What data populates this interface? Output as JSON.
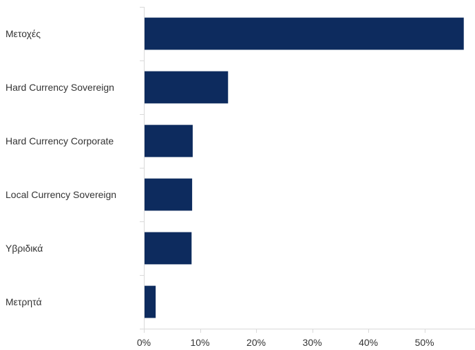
{
  "chart_data": {
    "type": "bar",
    "orientation": "horizontal",
    "categories": [
      "Μετοχές",
      "Hard Currency Sovereign",
      "Hard Currency Corporate",
      "Local Currency Sovereign",
      "Υβριδικά",
      "Μετρητά"
    ],
    "values": [
      57,
      15,
      8.7,
      8.6,
      8.5,
      2.1
    ],
    "value_unit": "%",
    "xlim": [
      0,
      59
    ],
    "xticks": [
      0,
      10,
      20,
      30,
      40,
      50
    ],
    "xtick_labels": [
      "0%",
      "10%",
      "20%",
      "30%",
      "40%",
      "50%"
    ],
    "grid": false,
    "legend": "none",
    "title": "",
    "xlabel": "",
    "ylabel": "",
    "bar_color": "#0d2b5e"
  }
}
